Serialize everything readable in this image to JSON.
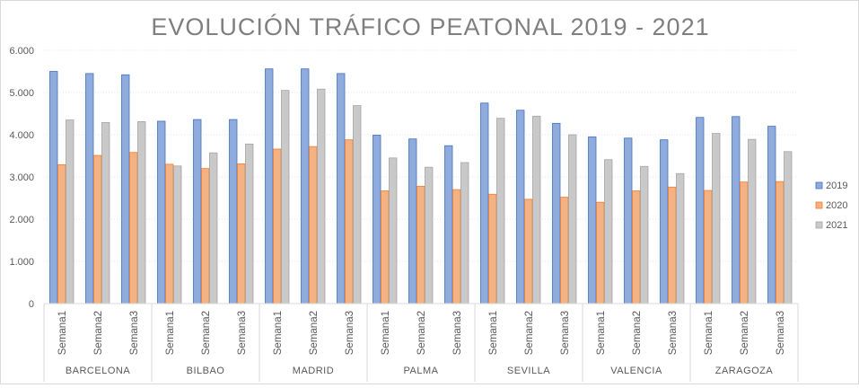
{
  "chart_data": {
    "type": "bar",
    "title": "EVOLUCIÓN TRÁFICO PEATONAL 2019 - 2021",
    "xlabel": "",
    "ylabel": "",
    "ylim": [
      0,
      6000
    ],
    "yticks": [
      "0",
      "1.000",
      "2.000",
      "3.000",
      "4.000",
      "5.000",
      "6.000"
    ],
    "grid": true,
    "legend": "right",
    "groups": [
      {
        "name": "BARCELONA",
        "weeks": [
          "Semana1",
          "Semana2",
          "Semana3"
        ]
      },
      {
        "name": "BILBAO",
        "weeks": [
          "Semana1",
          "Semana2",
          "Semana3"
        ]
      },
      {
        "name": "MADRID",
        "weeks": [
          "Semana1",
          "Semana2",
          "Semana3"
        ]
      },
      {
        "name": "PALMA",
        "weeks": [
          "Semana1",
          "Semana2",
          "Semana3"
        ]
      },
      {
        "name": "SEVILLA",
        "weeks": [
          "Semana1",
          "Semana2",
          "Semana3"
        ]
      },
      {
        "name": "VALENCIA",
        "weeks": [
          "Semana1",
          "Semana2",
          "Semana3"
        ]
      },
      {
        "name": "ZARAGOZA",
        "weeks": [
          "Semana1",
          "Semana2",
          "Semana3"
        ]
      }
    ],
    "series": [
      {
        "name": "2019",
        "color": "#8faadc",
        "stroke": "#4472c4",
        "values": [
          5500,
          5450,
          5420,
          4320,
          4360,
          4360,
          5560,
          5560,
          5450,
          3990,
          3900,
          3740,
          4750,
          4580,
          4270,
          3950,
          3920,
          3880,
          4410,
          4430,
          4200
        ]
      },
      {
        "name": "2020",
        "color": "#f4b183",
        "stroke": "#ed7d31",
        "values": [
          3290,
          3510,
          3580,
          3300,
          3200,
          3310,
          3660,
          3720,
          3880,
          2670,
          2780,
          2700,
          2590,
          2470,
          2520,
          2400,
          2670,
          2760,
          2680,
          2880,
          2890
        ]
      },
      {
        "name": "2021",
        "color": "#c9c9c9",
        "stroke": "#a5a5a5",
        "values": [
          4350,
          4290,
          4310,
          3260,
          3570,
          3780,
          5050,
          5080,
          4690,
          3450,
          3230,
          3340,
          4390,
          4440,
          4000,
          3410,
          3250,
          3080,
          4030,
          3890,
          3600
        ]
      }
    ]
  }
}
